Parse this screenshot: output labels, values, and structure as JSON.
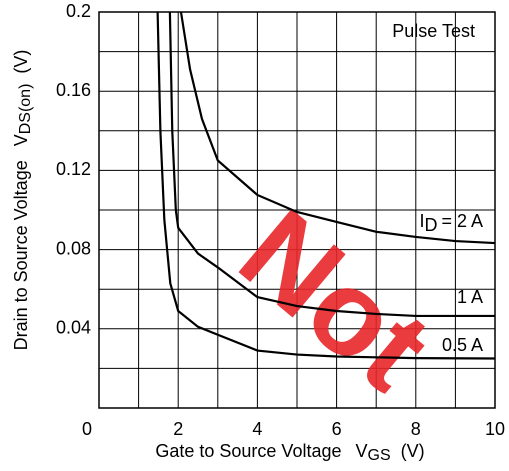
{
  "chart_data": {
    "type": "line",
    "annotation": "Pulse Test",
    "watermark": "Not",
    "x_label": "Gate to Source Voltage",
    "x_label_symbol": "V",
    "x_label_subscript": "GS",
    "x_label_unit": "(V)",
    "y_label": "Drain to Source Voltage",
    "y_label_symbol": "V",
    "y_label_subscript": "DS(on)",
    "y_label_unit": "(V)",
    "xlim": [
      0,
      10
    ],
    "ylim": [
      0,
      0.2
    ],
    "xticks": [
      0,
      2,
      4,
      6,
      8,
      10
    ],
    "yticks": [
      0.04,
      0.08,
      0.12,
      0.16,
      0.2
    ],
    "xgrid": [
      1,
      2,
      3,
      4,
      5,
      6,
      7,
      8,
      9
    ],
    "ygrid": [
      0.02,
      0.04,
      0.06,
      0.08,
      0.1,
      0.12,
      0.14,
      0.16,
      0.18
    ],
    "grid": true,
    "series": [
      {
        "name_prefix": "I",
        "name_subscript": "D",
        "name": "= 2 A",
        "color": "#000000",
        "x": [
          2.07,
          2.3,
          2.6,
          3,
          4,
          5,
          6,
          7,
          8,
          9,
          10
        ],
        "values": [
          0.2,
          0.171,
          0.146,
          0.125,
          0.1076,
          0.099,
          0.094,
          0.089,
          0.0864,
          0.0843,
          0.0833
        ]
      },
      {
        "name": "1 A",
        "color": "#000000",
        "x": [
          1.79,
          1.85,
          1.94,
          2,
          2.5,
          3,
          4,
          5,
          6,
          7,
          8,
          10
        ],
        "values": [
          0.2,
          0.14,
          0.1,
          0.091,
          0.078,
          0.071,
          0.056,
          0.0515,
          0.049,
          0.0475,
          0.0465,
          0.0465
        ]
      },
      {
        "name": "0.5 A",
        "color": "#000000",
        "x": [
          1.48,
          1.55,
          1.65,
          1.8,
          2,
          2.5,
          3,
          4,
          5,
          6,
          8,
          10
        ],
        "values": [
          0.2,
          0.14,
          0.095,
          0.063,
          0.049,
          0.041,
          0.037,
          0.029,
          0.027,
          0.026,
          0.0252,
          0.025
        ]
      }
    ]
  }
}
